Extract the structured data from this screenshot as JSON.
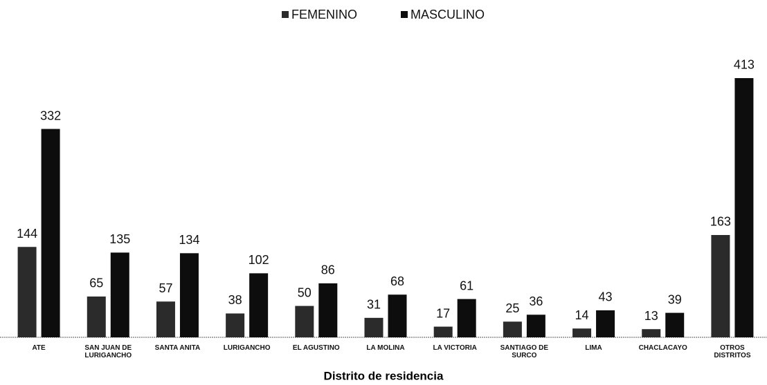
{
  "chart_data": {
    "type": "bar",
    "x_label": "Distrito de residencia",
    "categories": [
      "ATE",
      "SAN JUAN DE LURIGANCHO",
      "SANTA ANITA",
      "LURIGANCHO",
      "EL AGUSTINO",
      "LA MOLINA",
      "LA VICTORIA",
      "SANTIAGO DE SURCO",
      "LIMA",
      "CHACLACAYO",
      "OTROS DISTRITOS"
    ],
    "series": [
      {
        "name": "FEMENINO",
        "color": "#2b2b2b",
        "values": [
          144,
          65,
          57,
          38,
          50,
          31,
          17,
          25,
          14,
          13,
          163
        ]
      },
      {
        "name": "MASCULINO",
        "color": "#0d0d0d",
        "values": [
          332,
          135,
          134,
          102,
          86,
          68,
          61,
          36,
          43,
          39,
          413
        ]
      }
    ],
    "ylim": [
      0,
      450
    ],
    "legend": "top"
  }
}
